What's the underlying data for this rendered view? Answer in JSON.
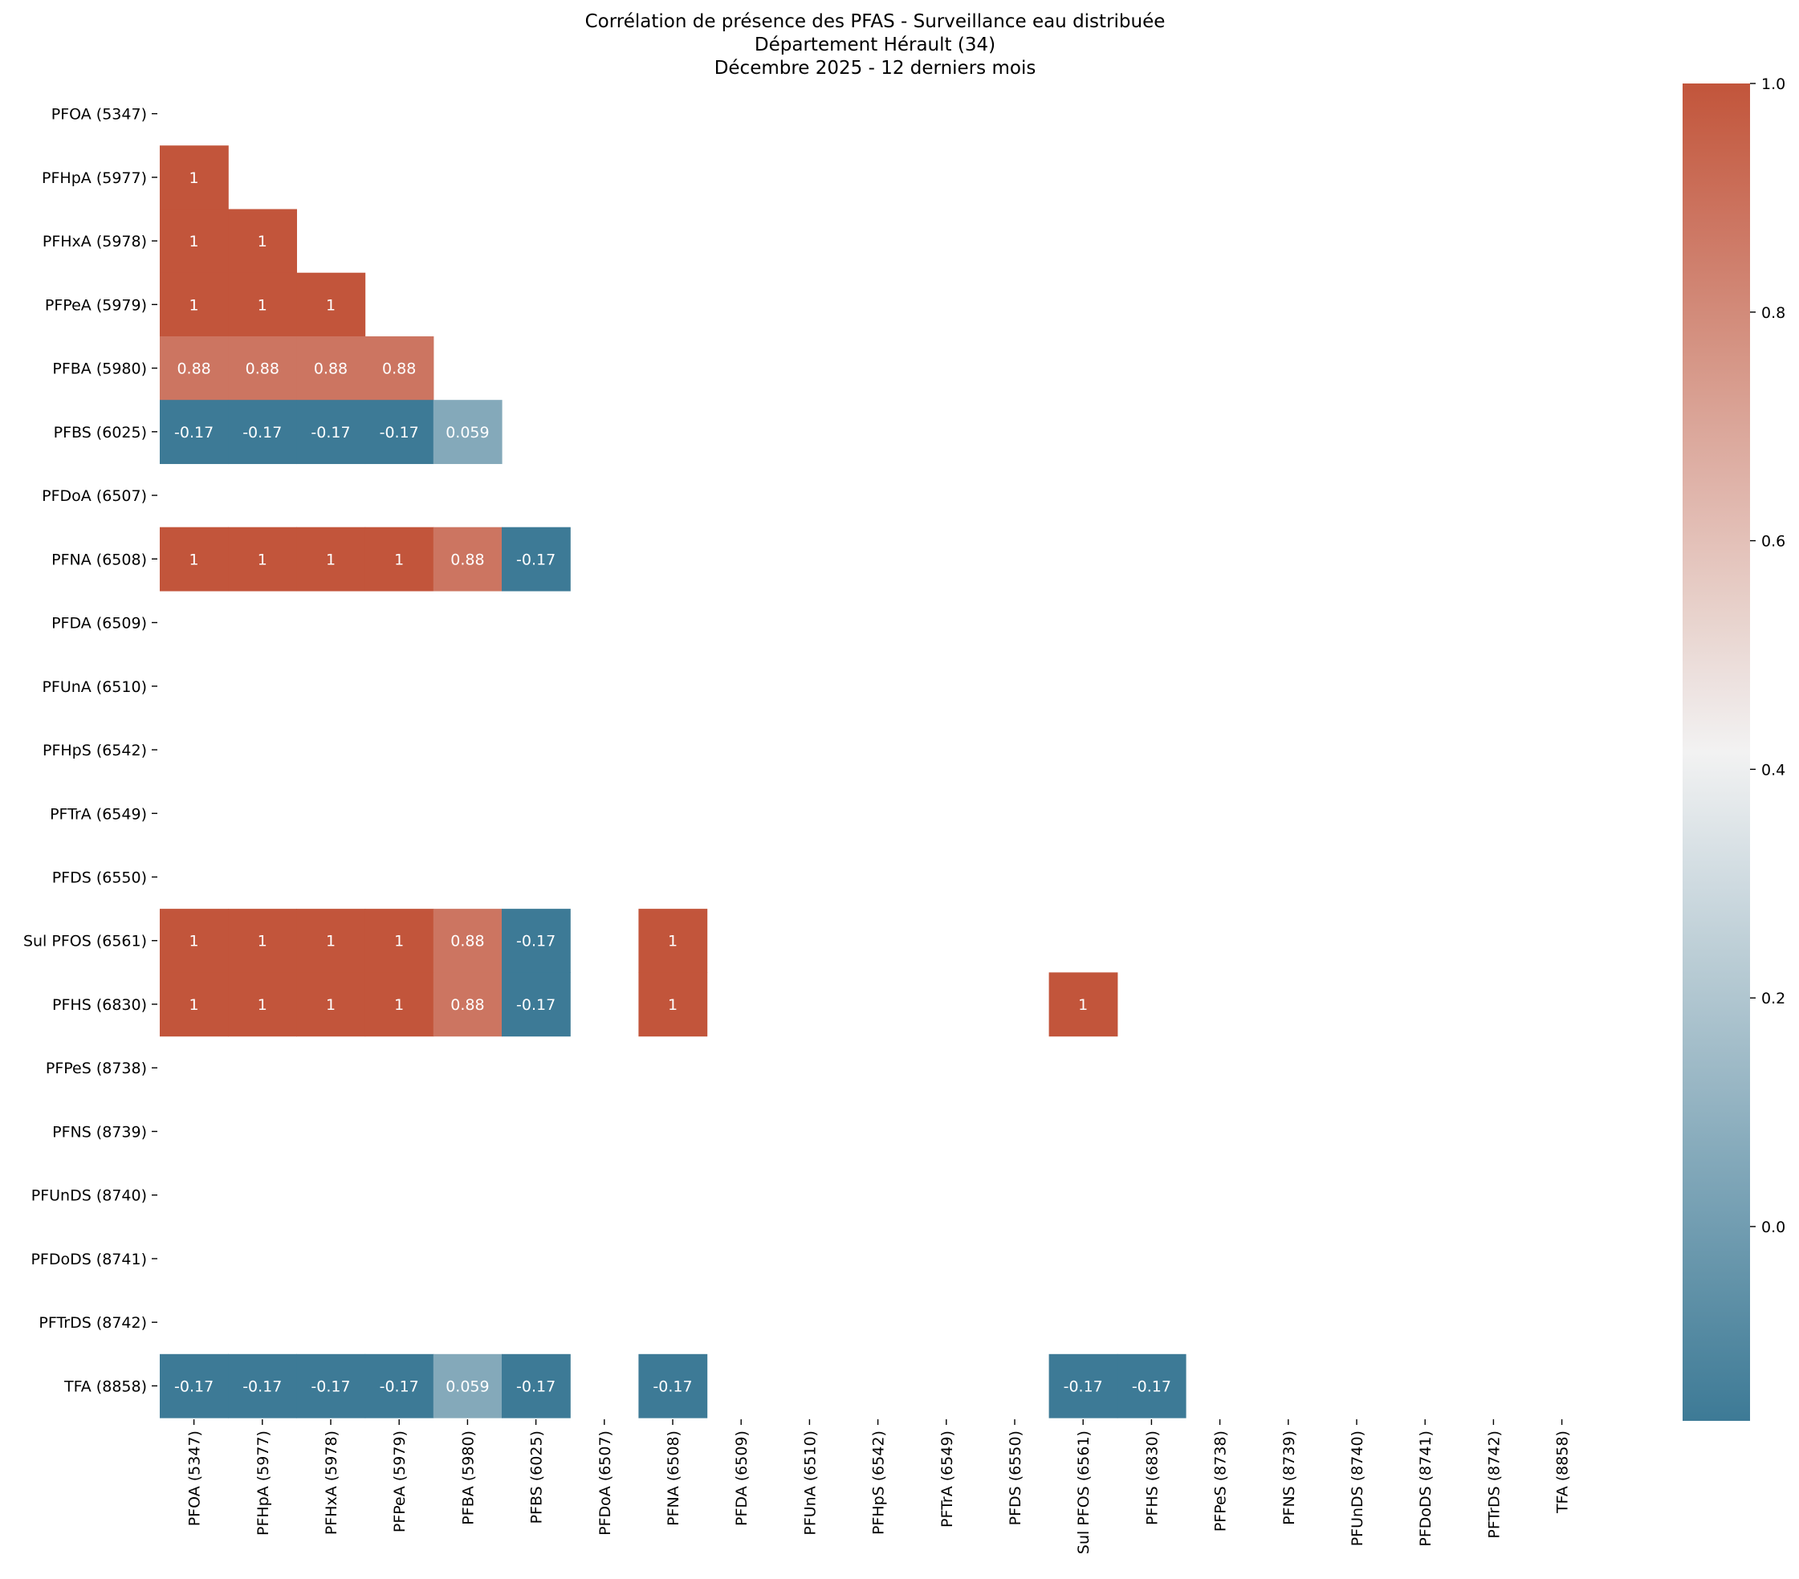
{
  "chart_data": {
    "type": "heatmap",
    "title": [
      "Corrélation de présence des PFAS - Surveillance eau distribuée",
      "Département Hérault (34)",
      "Décembre 2025 - 12 derniers mois"
    ],
    "labels": [
      "PFOA (5347)",
      "PFHpA (5977)",
      "PFHxA (5978)",
      "PFPeA (5979)",
      "PFBA (5980)",
      "PFBS (6025)",
      "PFDoA (6507)",
      "PFNA (6508)",
      "PFDA (6509)",
      "PFUnA (6510)",
      "PFHpS (6542)",
      "PFTrA (6549)",
      "PFDS (6550)",
      "Sul PFOS (6561)",
      "PFHS (6830)",
      "PFPeS (8738)",
      "PFNS (8739)",
      "PFUnDS (8740)",
      "PFDoDS (8741)",
      "PFTrDS (8742)",
      "TFA (8858)"
    ],
    "mask": "lower-triangle (upper triangle and diagonal hidden); blank cells are missing values",
    "cells": [
      {
        "row": 1,
        "col": 0,
        "value": 1,
        "label": "1"
      },
      {
        "row": 2,
        "col": 0,
        "value": 1,
        "label": "1"
      },
      {
        "row": 2,
        "col": 1,
        "value": 1,
        "label": "1"
      },
      {
        "row": 3,
        "col": 0,
        "value": 1,
        "label": "1"
      },
      {
        "row": 3,
        "col": 1,
        "value": 1,
        "label": "1"
      },
      {
        "row": 3,
        "col": 2,
        "value": 1,
        "label": "1"
      },
      {
        "row": 4,
        "col": 0,
        "value": 0.88,
        "label": "0.88"
      },
      {
        "row": 4,
        "col": 1,
        "value": 0.88,
        "label": "0.88"
      },
      {
        "row": 4,
        "col": 2,
        "value": 0.88,
        "label": "0.88"
      },
      {
        "row": 4,
        "col": 3,
        "value": 0.88,
        "label": "0.88"
      },
      {
        "row": 5,
        "col": 0,
        "value": -0.17,
        "label": "-0.17"
      },
      {
        "row": 5,
        "col": 1,
        "value": -0.17,
        "label": "-0.17"
      },
      {
        "row": 5,
        "col": 2,
        "value": -0.17,
        "label": "-0.17"
      },
      {
        "row": 5,
        "col": 3,
        "value": -0.17,
        "label": "-0.17"
      },
      {
        "row": 5,
        "col": 4,
        "value": 0.059,
        "label": "0.059"
      },
      {
        "row": 7,
        "col": 0,
        "value": 1,
        "label": "1"
      },
      {
        "row": 7,
        "col": 1,
        "value": 1,
        "label": "1"
      },
      {
        "row": 7,
        "col": 2,
        "value": 1,
        "label": "1"
      },
      {
        "row": 7,
        "col": 3,
        "value": 1,
        "label": "1"
      },
      {
        "row": 7,
        "col": 4,
        "value": 0.88,
        "label": "0.88"
      },
      {
        "row": 7,
        "col": 5,
        "value": -0.17,
        "label": "-0.17"
      },
      {
        "row": 13,
        "col": 0,
        "value": 1,
        "label": "1"
      },
      {
        "row": 13,
        "col": 1,
        "value": 1,
        "label": "1"
      },
      {
        "row": 13,
        "col": 2,
        "value": 1,
        "label": "1"
      },
      {
        "row": 13,
        "col": 3,
        "value": 1,
        "label": "1"
      },
      {
        "row": 13,
        "col": 4,
        "value": 0.88,
        "label": "0.88"
      },
      {
        "row": 13,
        "col": 5,
        "value": -0.17,
        "label": "-0.17"
      },
      {
        "row": 13,
        "col": 7,
        "value": 1,
        "label": "1"
      },
      {
        "row": 14,
        "col": 0,
        "value": 1,
        "label": "1"
      },
      {
        "row": 14,
        "col": 1,
        "value": 1,
        "label": "1"
      },
      {
        "row": 14,
        "col": 2,
        "value": 1,
        "label": "1"
      },
      {
        "row": 14,
        "col": 3,
        "value": 1,
        "label": "1"
      },
      {
        "row": 14,
        "col": 4,
        "value": 0.88,
        "label": "0.88"
      },
      {
        "row": 14,
        "col": 5,
        "value": -0.17,
        "label": "-0.17"
      },
      {
        "row": 14,
        "col": 7,
        "value": 1,
        "label": "1"
      },
      {
        "row": 14,
        "col": 13,
        "value": 1,
        "label": "1"
      },
      {
        "row": 20,
        "col": 0,
        "value": -0.17,
        "label": "-0.17"
      },
      {
        "row": 20,
        "col": 1,
        "value": -0.17,
        "label": "-0.17"
      },
      {
        "row": 20,
        "col": 2,
        "value": -0.17,
        "label": "-0.17"
      },
      {
        "row": 20,
        "col": 3,
        "value": -0.17,
        "label": "-0.17"
      },
      {
        "row": 20,
        "col": 4,
        "value": 0.059,
        "label": "0.059"
      },
      {
        "row": 20,
        "col": 5,
        "value": -0.17,
        "label": "-0.17"
      },
      {
        "row": 20,
        "col": 7,
        "value": -0.17,
        "label": "-0.17"
      },
      {
        "row": 20,
        "col": 13,
        "value": -0.17,
        "label": "-0.17"
      },
      {
        "row": 20,
        "col": 14,
        "value": -0.17,
        "label": "-0.17"
      }
    ],
    "colorscale": {
      "type": "diverging",
      "low_color": "#3d7a96",
      "mid_color": "#f2f2f2",
      "high_color": "#c2553b",
      "range": [
        -0.17,
        1.0
      ],
      "center": 0.415
    },
    "colorbar": {
      "ticks": [
        0.0,
        0.2,
        0.4,
        0.6,
        0.8,
        1.0
      ],
      "tick_labels": [
        "0.0",
        "0.2",
        "0.4",
        "0.6",
        "0.8",
        "1.0"
      ]
    },
    "grid": false
  }
}
